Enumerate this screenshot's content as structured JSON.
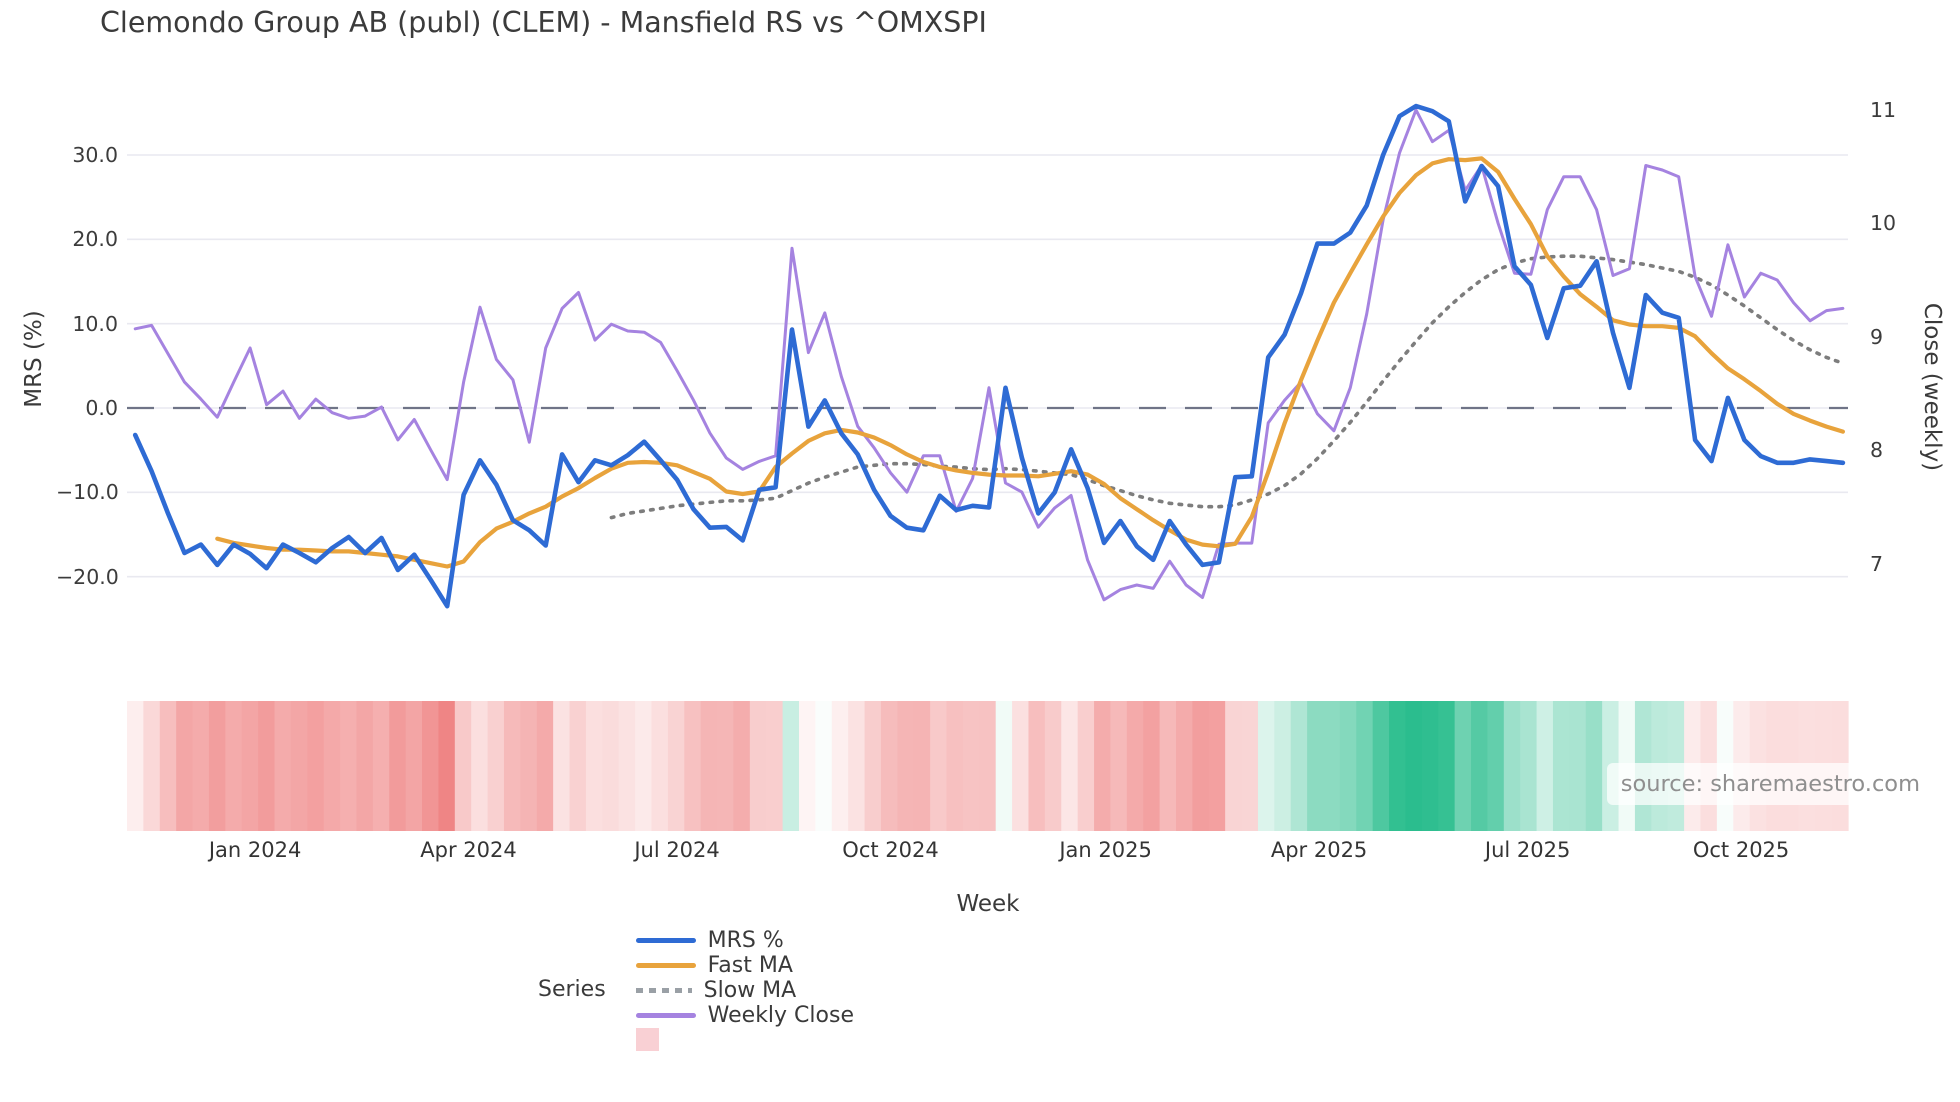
{
  "title": "Clemondo Group AB (publ) (CLEM) - Mansfield RS vs ^OMXSPI",
  "source_note": "source: sharemaestro.com",
  "axes": {
    "left": {
      "label": "MRS (%)",
      "tick_values": [
        30,
        20,
        10,
        0,
        -10,
        -20
      ],
      "tick_labels": [
        "30.0",
        "20.0",
        "10.0",
        "0.0",
        "−10.0",
        "−20.0"
      ]
    },
    "right": {
      "label": "Close (weekly)",
      "tick_values": [
        11,
        10,
        9,
        8,
        7
      ],
      "tick_labels": [
        "11",
        "10",
        "9",
        "8",
        "7"
      ]
    },
    "x": {
      "label": "Week",
      "tick_labels": [
        "Jan 2024",
        "Apr 2024",
        "Jul 2024",
        "Oct 2024",
        "Jan 2025",
        "Apr 2025",
        "Jul 2025",
        "Oct 2025"
      ],
      "tick_weeks": [
        7.3,
        20.3,
        33.0,
        46.0,
        59.1,
        72.1,
        84.8,
        97.8
      ]
    }
  },
  "legend": {
    "title": "Series",
    "entries": [
      {
        "label": "MRS %",
        "swatch": "line",
        "color": "#2e6bd4"
      },
      {
        "label": "Fast MA",
        "swatch": "line",
        "color": "#e8a33c"
      },
      {
        "label": "Slow MA",
        "swatch": "dotted",
        "color": "#9aa0a6"
      },
      {
        "label": "Weekly Close",
        "swatch": "line",
        "color": "#a583e0"
      },
      {
        "label": "",
        "swatch": "square",
        "color": "#f9d0d4"
      }
    ]
  },
  "colors": {
    "grid": "#e9e9f0",
    "zero_line": "#6f7487",
    "mrs_line": "#2e6bd4",
    "fast_ma": "#e8a33c",
    "slow_ma": "#7d7d7d",
    "weekly_close": "#a583e0",
    "heat_negative_full": "#ee7d7d",
    "heat_positive_full": "#2abd8d",
    "title_text": "#3b3b3b",
    "source_text": "#8f8f8f"
  },
  "chart_data": {
    "type": "line",
    "x_unit": "weekly",
    "x_range_weeks": 105,
    "x_start_label": "Nov 2023",
    "x_end_label": "Nov 2025",
    "left_axis_range": [
      -25,
      37
    ],
    "right_axis_range": [
      6.6,
      11.2
    ],
    "grid": "horizontal-only",
    "zero_reference_line": 0,
    "series": [
      {
        "name": "MRS %",
        "axis": "left",
        "style": "solid",
        "color": "#2e6bd4",
        "values": [
          -3.2,
          -7.5,
          -12.5,
          -17.2,
          -16.2,
          -18.6,
          -16.2,
          -17.3,
          -19.0,
          -16.2,
          -17.2,
          -18.3,
          -16.6,
          -15.3,
          -17.2,
          -15.4,
          -19.2,
          -17.4,
          -20.4,
          -23.5,
          -10.3,
          -6.2,
          -9.1,
          -13.3,
          -14.5,
          -16.3,
          -5.5,
          -8.8,
          -6.2,
          -6.8,
          -5.6,
          -4.0,
          -6.2,
          -8.5,
          -12.0,
          -14.2,
          -14.1,
          -15.7,
          -9.7,
          -9.4,
          9.3,
          -2.2,
          0.9,
          -3.0,
          -5.5,
          -9.7,
          -12.8,
          -14.2,
          -14.5,
          -10.4,
          -12.1,
          -11.6,
          -11.8,
          2.4,
          -5.9,
          -12.5,
          -10.0,
          -4.9,
          -9.5,
          -16.0,
          -13.4,
          -16.4,
          -18.0,
          -13.4,
          -16.2,
          -18.6,
          -18.3,
          -8.2,
          -8.1,
          6.0,
          8.7,
          13.6,
          19.5,
          19.5,
          20.8,
          24.0,
          30.0,
          34.6,
          35.8,
          35.2,
          34.0,
          24.5,
          28.7,
          26.3,
          16.8,
          14.6,
          8.3,
          14.2,
          14.5,
          17.4,
          8.9,
          2.4,
          13.4,
          11.3,
          10.7,
          -3.8,
          -6.3,
          1.2,
          -3.8,
          -5.7,
          -6.5,
          -6.5,
          -6.1,
          -6.3,
          -6.5
        ]
      },
      {
        "name": "Fast MA",
        "axis": "left",
        "style": "solid",
        "color": "#e8a33c",
        "values": [
          null,
          null,
          null,
          null,
          null,
          -15.5,
          -16.0,
          -16.3,
          -16.6,
          -16.8,
          -16.8,
          -16.9,
          -17.0,
          -17.0,
          -17.2,
          -17.4,
          -17.6,
          -18.0,
          -18.4,
          -18.8,
          -18.2,
          -15.9,
          -14.3,
          -13.5,
          -12.5,
          -11.7,
          -10.5,
          -9.5,
          -8.3,
          -7.2,
          -6.5,
          -6.4,
          -6.5,
          -6.8,
          -7.6,
          -8.4,
          -9.9,
          -10.2,
          -9.9,
          -7.0,
          -5.4,
          -3.9,
          -3.0,
          -2.6,
          -2.9,
          -3.5,
          -4.4,
          -5.5,
          -6.4,
          -7.0,
          -7.4,
          -7.7,
          -7.9,
          -8.0,
          -8.0,
          -8.1,
          -7.8,
          -7.5,
          -7.9,
          -9.0,
          -10.7,
          -12.0,
          -13.3,
          -14.5,
          -15.6,
          -16.2,
          -16.4,
          -16.1,
          -12.9,
          -7.6,
          -1.8,
          3.3,
          8.0,
          12.5,
          16.0,
          19.4,
          22.7,
          25.5,
          27.6,
          29.0,
          29.5,
          29.4,
          29.6,
          28.0,
          24.8,
          21.8,
          18.0,
          15.6,
          13.5,
          12.0,
          10.4,
          9.9,
          9.7,
          9.7,
          9.5,
          8.5,
          6.5,
          4.7,
          3.4,
          2.0,
          0.5,
          -0.7,
          -1.5,
          -2.2,
          -2.8
        ]
      },
      {
        "name": "Slow MA",
        "axis": "left",
        "style": "dotted",
        "color": "#7d7d7d",
        "values": [
          null,
          null,
          null,
          null,
          null,
          null,
          null,
          null,
          null,
          null,
          null,
          null,
          null,
          null,
          null,
          null,
          null,
          null,
          null,
          null,
          null,
          null,
          null,
          null,
          null,
          null,
          null,
          null,
          null,
          -13.0,
          -12.5,
          -12.2,
          -11.9,
          -11.6,
          -11.4,
          -11.2,
          -11.0,
          -11.0,
          -10.9,
          -10.7,
          -9.8,
          -8.9,
          -8.2,
          -7.6,
          -7.0,
          -6.8,
          -6.6,
          -6.6,
          -6.7,
          -6.9,
          -7.0,
          -7.2,
          -7.3,
          -7.2,
          -7.3,
          -7.5,
          -7.7,
          -7.9,
          -8.5,
          -9.2,
          -9.8,
          -10.4,
          -10.9,
          -11.3,
          -11.5,
          -11.7,
          -11.7,
          -11.5,
          -10.9,
          -10.2,
          -9.2,
          -7.8,
          -6.0,
          -3.9,
          -1.7,
          0.7,
          3.2,
          5.6,
          7.9,
          10.1,
          12.0,
          13.7,
          15.2,
          16.4,
          17.2,
          17.7,
          17.9,
          18.0,
          18.0,
          17.8,
          17.6,
          17.3,
          17.0,
          16.6,
          16.2,
          15.5,
          14.6,
          13.4,
          12.1,
          10.7,
          9.3,
          8.0,
          6.9,
          6.0,
          5.3
        ]
      },
      {
        "name": "Weekly Close",
        "axis": "right",
        "style": "solid",
        "color": "#a583e0",
        "values": [
          9.07,
          9.1,
          8.85,
          8.6,
          8.45,
          8.29,
          8.6,
          8.9,
          8.4,
          8.52,
          8.28,
          8.45,
          8.33,
          8.28,
          8.3,
          8.38,
          8.09,
          8.27,
          8.0,
          7.74,
          8.6,
          9.26,
          8.8,
          8.62,
          8.07,
          8.9,
          9.25,
          9.39,
          8.97,
          9.11,
          9.05,
          9.04,
          8.95,
          8.7,
          8.44,
          8.15,
          7.93,
          7.83,
          7.9,
          7.95,
          9.78,
          8.86,
          9.21,
          8.65,
          8.21,
          8.02,
          7.8,
          7.63,
          7.95,
          7.95,
          7.46,
          7.75,
          8.55,
          7.71,
          7.63,
          7.32,
          7.49,
          7.6,
          7.03,
          6.68,
          6.77,
          6.81,
          6.78,
          7.02,
          6.81,
          6.7,
          7.17,
          7.18,
          7.18,
          8.24,
          8.44,
          8.6,
          8.32,
          8.17,
          8.55,
          9.2,
          10.03,
          10.62,
          11.0,
          10.72,
          10.82,
          10.29,
          10.51,
          10.0,
          9.56,
          9.55,
          10.12,
          10.41,
          10.41,
          10.12,
          9.54,
          9.6,
          10.51,
          10.47,
          10.41,
          9.53,
          9.18,
          9.81,
          9.35,
          9.56,
          9.5,
          9.3,
          9.14,
          9.23,
          9.25
        ]
      }
    ],
    "heatmap": {
      "description": "weekly strip below plot; red for negative MRS %, green for positive MRS %",
      "values_source": "MRS %",
      "negative_scale_max": 25,
      "positive_scale_max": 36
    }
  }
}
